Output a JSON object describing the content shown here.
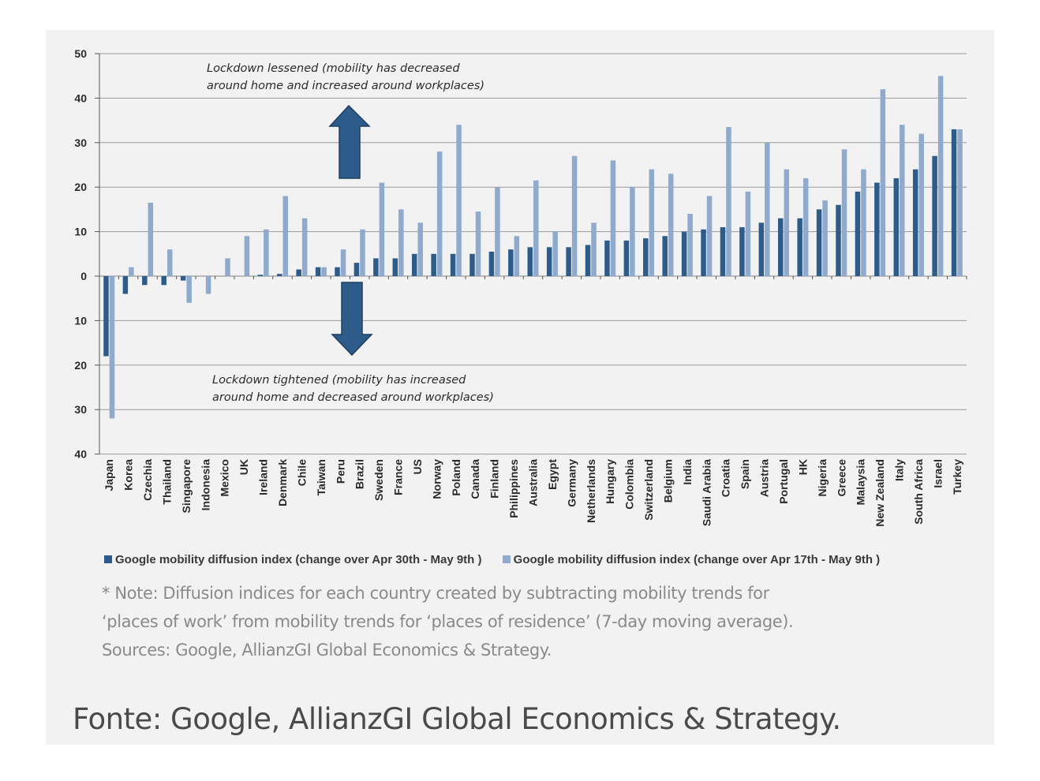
{
  "chart_data": {
    "type": "bar",
    "categories": [
      "Japan",
      "Korea",
      "Czechia",
      "Thailand",
      "Singapore",
      "Indonesia",
      "Mexico",
      "UK",
      "Ireland",
      "Denmark",
      "Chile",
      "Taiwan",
      "Peru",
      "Brazil",
      "Sweden",
      "France",
      "US",
      "Norway",
      "Poland",
      "Canada",
      "Finland",
      "Philippines",
      "Australia",
      "Egypt",
      "Germany",
      "Netherlands",
      "Hungary",
      "Colombia",
      "Switzerland",
      "Belgium",
      "India",
      "Saudi Arabia",
      "Croatia",
      "Spain",
      "Austria",
      "Portugal",
      "HK",
      "Nigeria",
      "Greece",
      "Malaysia",
      "New Zealand",
      "Italy",
      "South Africa",
      "Israel",
      "Turkey"
    ],
    "series": [
      {
        "name": "Google mobility diffusion index (change over Apr 30th - May 9th )",
        "color": "#2e5c8a",
        "values": [
          -18,
          -4,
          -2,
          -2,
          -1,
          0,
          0,
          0,
          0.3,
          0.5,
          1.5,
          2,
          2,
          3,
          4,
          4,
          5,
          5,
          5,
          5,
          5.5,
          6,
          6.5,
          6.5,
          6.5,
          7,
          8,
          8,
          8.5,
          9,
          10,
          10.5,
          11,
          11,
          12,
          13,
          13,
          15,
          16,
          19,
          21,
          22,
          24,
          27,
          33
        ]
      },
      {
        "name": "Google mobility diffusion index (change over Apr 17th - May 9th )",
        "color": "#8faacc",
        "values": [
          -32,
          2,
          16.5,
          6,
          -6,
          -4,
          4,
          9,
          10.5,
          18,
          13,
          2,
          6,
          10.5,
          21,
          15,
          12,
          28,
          34,
          14.5,
          20,
          9,
          21.5,
          10,
          27,
          12,
          26,
          20,
          24,
          23,
          14,
          18,
          33.5,
          19,
          30,
          24,
          22,
          17,
          28.5,
          24,
          42,
          34,
          32,
          45,
          33
        ]
      }
    ],
    "yticks": [
      {
        "value": 50,
        "label": "50"
      },
      {
        "value": 40,
        "label": "40"
      },
      {
        "value": 30,
        "label": "30"
      },
      {
        "value": 20,
        "label": "20"
      },
      {
        "value": 10,
        "label": "10"
      },
      {
        "value": 0,
        "label": "0"
      },
      {
        "value": -10,
        "label": "10"
      },
      {
        "value": -20,
        "label": "20"
      },
      {
        "value": -30,
        "label": "30"
      },
      {
        "value": -40,
        "label": "40"
      }
    ],
    "ylim": [
      -40,
      50
    ],
    "grid": true,
    "legend_position": "bottom",
    "annotations": {
      "up_text": [
        "Lockdown lessened (mobility has decreased",
        "around home and increased around workplaces)"
      ],
      "down_text": [
        "Lockdown tightened (mobility has increased",
        "around home and decreased around workplaces)"
      ]
    }
  },
  "note_lines": [
    "* Note: Diffusion indices for each country created by subtracting mobility trends for",
    "‘places of work’ from mobility trends for ‘places of residence’ (7-day moving average).",
    "Sources: Google, AllianzGI Global Economics & Strategy."
  ],
  "source_caption": "Fonte: Google, AllianzGI Global Economics & Strategy.",
  "colors": {
    "background": "#f2f2f2",
    "grid": "#9a9a9a",
    "arrow": "#2e5c8a",
    "arrow_stroke": "#1f3f60"
  }
}
